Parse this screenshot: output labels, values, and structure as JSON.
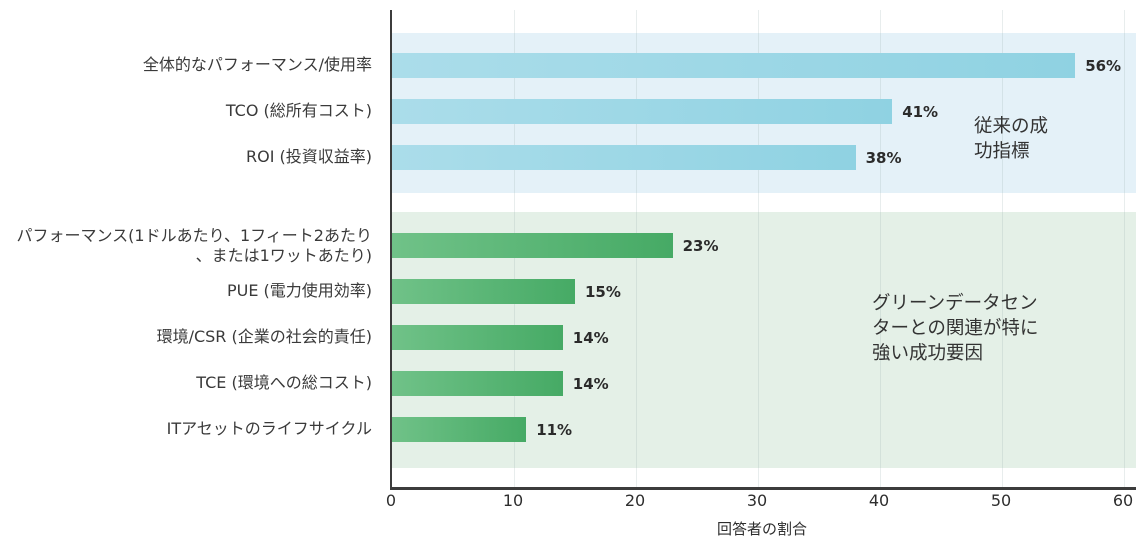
{
  "chart_data": {
    "type": "bar",
    "orientation": "horizontal",
    "xlabel": "回答者の割合",
    "xlim": [
      0,
      61
    ],
    "xticks": [
      "0",
      "10",
      "20",
      "30",
      "40",
      "50",
      "60"
    ],
    "grid": true,
    "legend_position": "none",
    "groups": [
      {
        "id": "traditional-metrics",
        "annotation": "従来の成\n功指標",
        "band_color": "#e4f1f8",
        "bar_color_start": "#abddea",
        "bar_color_end": "#8fd2e2",
        "bars": [
          {
            "label": "全体的なパフォーマンス/使用率",
            "value": 56,
            "value_label": "56%"
          },
          {
            "label": "TCO (総所有コスト)",
            "value": 41,
            "value_label": "41%"
          },
          {
            "label": "ROI (投資収益率)",
            "value": 38,
            "value_label": "38%"
          }
        ]
      },
      {
        "id": "green-datacenter-factors",
        "annotation": "グリーンデータセン\nターとの関連が特に\n強い成功要因",
        "band_color": "#e4f0e7",
        "bar_color_start": "#70c288",
        "bar_color_end": "#46aa65",
        "bars": [
          {
            "label": "パフォーマンス(1ドルあたり、1フィート2あたり\n、または1ワットあたり)",
            "value": 23,
            "value_label": "23%"
          },
          {
            "label": "PUE (電力使用効率)",
            "value": 15,
            "value_label": "15%"
          },
          {
            "label": "環境/CSR (企業の社会的責任)",
            "value": 14,
            "value_label": "14%"
          },
          {
            "label": "TCE (環境への総コスト)",
            "value": 14,
            "value_label": "14%"
          },
          {
            "label": "ITアセットのライフサイクル",
            "value": 11,
            "value_label": "11%"
          }
        ]
      }
    ]
  }
}
